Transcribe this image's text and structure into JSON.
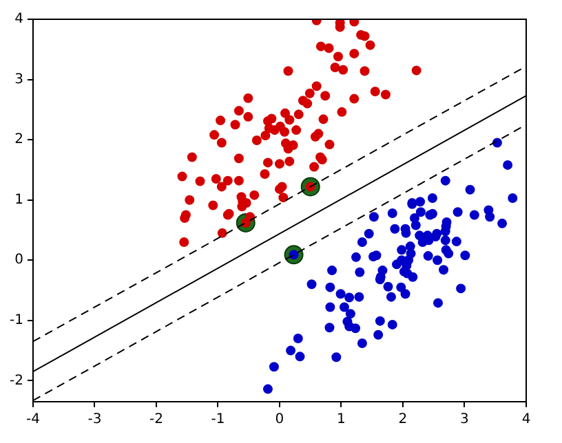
{
  "chart_data": {
    "type": "scatter",
    "xlim": [
      -4,
      4
    ],
    "ylim": [
      -2.35,
      4
    ],
    "xticks": [
      -4,
      -3,
      -2,
      -1,
      0,
      1,
      2,
      3,
      4
    ],
    "yticks": [
      -2,
      -1,
      0,
      1,
      2,
      3,
      4
    ],
    "grid": false,
    "legend": false,
    "marker": "circle",
    "series": [
      {
        "type": "scatter",
        "color": "#1e6b1e",
        "x": [
          0.5,
          -0.55,
          0.23
        ],
        "values": [
          1.22,
          0.62,
          0.09
        ]
      },
      {
        "type": "scatter",
        "color": "#d40000",
        "x": [
          0.6,
          0.98,
          0.98,
          1.21,
          1.32,
          1.38,
          1.47,
          0.67,
          0.8,
          0.95,
          1.21,
          0.14,
          0.9,
          1.03,
          1.38,
          2.22,
          0.6,
          0.49,
          1.55,
          1.72,
          0.74,
          1.21,
          -0.51,
          0.38,
          0.45,
          -0.66,
          -0.96,
          -0.72,
          -0.51,
          1.01,
          0.09,
          0.31,
          0.71,
          -0.19,
          -0.13,
          0.16,
          -0.17,
          -0.08,
          0.01,
          0.08,
          0.27,
          -1.06,
          -0.94,
          -0.37,
          -0.23,
          0.58,
          0.63,
          0.81,
          0.1,
          0.22,
          0.14,
          -1.42,
          -0.66,
          0.66,
          0.69,
          -0.19,
          0.0,
          0.16,
          0.56,
          -1.58,
          -1.29,
          -1.03,
          -0.94,
          -0.84,
          -0.66,
          -0.24,
          0.0,
          0.04,
          0.06,
          -1.46,
          -0.62,
          -0.41,
          -0.6,
          -0.54,
          0.5,
          -1.52,
          -1.54,
          -1.08,
          -0.82,
          -0.84,
          -0.61,
          -0.48,
          -0.93,
          -1.55,
          -0.55
        ],
        "values": [
          3.98,
          3.94,
          3.87,
          3.96,
          3.74,
          3.72,
          3.57,
          3.55,
          3.52,
          3.38,
          3.43,
          3.14,
          3.2,
          3.16,
          3.14,
          3.15,
          2.89,
          2.77,
          2.8,
          2.75,
          2.73,
          2.68,
          2.69,
          2.65,
          2.6,
          2.48,
          2.32,
          2.25,
          2.38,
          2.46,
          2.44,
          2.42,
          2.34,
          2.31,
          2.35,
          2.33,
          2.19,
          2.16,
          2.22,
          2.13,
          2.16,
          2.08,
          1.95,
          1.99,
          2.07,
          2.05,
          2.1,
          1.92,
          1.94,
          1.91,
          1.85,
          1.71,
          1.69,
          1.71,
          1.67,
          1.62,
          1.6,
          1.64,
          1.55,
          1.39,
          1.31,
          1.35,
          1.22,
          1.32,
          1.32,
          1.43,
          1.18,
          1.22,
          1.04,
          1.0,
          1.05,
          1.08,
          0.97,
          0.95,
          1.22,
          0.75,
          0.7,
          0.91,
          0.77,
          0.75,
          0.89,
          0.72,
          0.45,
          0.3,
          0.62
        ]
      },
      {
        "type": "scatter",
        "color": "#0000c8",
        "x": [
          1.83,
          1.53,
          2.15,
          2.29,
          2.48,
          2.44,
          2.89,
          3.16,
          3.39,
          3.41,
          3.61,
          2.19,
          2.21,
          1.87,
          2.04,
          2.05,
          2.69,
          2.71,
          2.7,
          2.55,
          2.53,
          2.27,
          2.4,
          2.32,
          2.42,
          2.69,
          2.87,
          1.45,
          1.34,
          2.12,
          1.98,
          2.13,
          2.7,
          2.74,
          3.01,
          2.41,
          2.56,
          1.98,
          2.09,
          2.06,
          1.9,
          1.24,
          1.52,
          1.57,
          2.02,
          2.07,
          2.16,
          1.67,
          1.64,
          1.63,
          1.3,
          0.85,
          2.66,
          0.52,
          0.82,
          1.76,
          1.97,
          2.04,
          1.81,
          2.94,
          2.57,
          0.99,
          1.29,
          1.13,
          0.82,
          1.05,
          1.15,
          1.1,
          1.13,
          1.23,
          0.81,
          1.63,
          1.83,
          1.6,
          1.34,
          0.92,
          0.3,
          0.18,
          0.33,
          -0.09,
          -0.19,
          3.53,
          3.7,
          3.78,
          2.69,
          3.09,
          2.15,
          2.28,
          2.48,
          0.23
        ],
        "values": [
          0.78,
          0.72,
          0.93,
          0.8,
          0.77,
          0.75,
          0.8,
          0.75,
          0.83,
          0.72,
          0.61,
          0.7,
          0.58,
          0.52,
          0.52,
          0.45,
          0.48,
          0.63,
          0.56,
          0.44,
          0.39,
          0.41,
          0.41,
          0.3,
          0.33,
          0.33,
          0.31,
          0.44,
          0.3,
          0.23,
          0.17,
          0.11,
          0.17,
          0.11,
          0.08,
          0.07,
          0.0,
          0.0,
          0.0,
          -0.09,
          -0.07,
          0.05,
          0.06,
          0.08,
          -0.19,
          -0.22,
          -0.28,
          -0.17,
          -0.28,
          -0.32,
          -0.2,
          -0.17,
          -0.16,
          -0.4,
          -0.45,
          -0.44,
          -0.45,
          -0.56,
          -0.61,
          -0.47,
          -0.71,
          -0.56,
          -0.61,
          -0.62,
          -0.78,
          -0.78,
          -0.89,
          -1.02,
          -1.1,
          -1.13,
          -1.12,
          -1.01,
          -1.07,
          -1.24,
          -1.38,
          -1.61,
          -1.3,
          -1.5,
          -1.6,
          -1.77,
          -2.14,
          1.95,
          1.58,
          1.03,
          1.32,
          1.17,
          0.95,
          0.97,
          1.03,
          0.09
        ]
      },
      {
        "type": "line",
        "color": "#000000",
        "marker": "none",
        "line_style": "solid",
        "x": [
          -4,
          4
        ],
        "values": [
          -1.85,
          2.73
        ]
      },
      {
        "type": "line",
        "color": "#000000",
        "marker": "none",
        "line_style": "dashed",
        "x": [
          -4,
          4
        ],
        "values": [
          -1.35,
          3.22
        ]
      },
      {
        "type": "line",
        "color": "#000000",
        "marker": "none",
        "line_style": "dashed",
        "x": [
          -4,
          4
        ],
        "values": [
          -2.33,
          2.25
        ]
      }
    ]
  }
}
